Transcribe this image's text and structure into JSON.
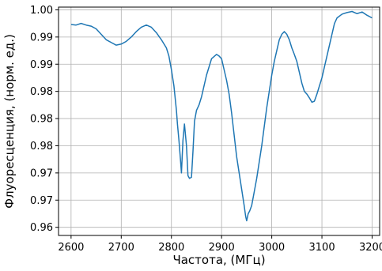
{
  "chart_data": {
    "type": "line",
    "title": "",
    "xlabel": "Частота, (МГц)",
    "ylabel": "Флуоресценция, (норм. ед.)",
    "xlim": [
      2575,
      3215
    ],
    "ylim": [
      0.9585,
      1.0005
    ],
    "grid": true,
    "legend": "none",
    "x_ticks": [
      2600,
      2700,
      2800,
      2900,
      3000,
      3100,
      3200
    ],
    "x_tick_labels": [
      "2600",
      "2700",
      "2800",
      "2900",
      "3000",
      "3100",
      "3200"
    ],
    "y_ticks": [
      0.96,
      0.965,
      0.97,
      0.975,
      0.98,
      0.985,
      0.99,
      0.995,
      1.0
    ],
    "y_tick_labels": [
      "0.96",
      "0.97",
      "0.97",
      "0.98",
      "0.98",
      "0.98",
      "0.99",
      "0.99",
      "1.00"
    ],
    "series": [
      {
        "color": "#1f77b4",
        "x": [
          2600,
          2610,
          2620,
          2630,
          2640,
          2650,
          2660,
          2670,
          2680,
          2690,
          2700,
          2710,
          2720,
          2730,
          2740,
          2750,
          2760,
          2770,
          2780,
          2790,
          2795,
          2800,
          2805,
          2810,
          2812,
          2815,
          2818,
          2820,
          2823,
          2826,
          2830,
          2833,
          2836,
          2840,
          2843,
          2846,
          2850,
          2855,
          2860,
          2870,
          2880,
          2890,
          2895,
          2900,
          2905,
          2910,
          2915,
          2920,
          2925,
          2930,
          2935,
          2940,
          2945,
          2948,
          2950,
          2953,
          2956,
          2960,
          2965,
          2970,
          2975,
          2980,
          2985,
          2990,
          2995,
          3000,
          3005,
          3010,
          3015,
          3020,
          3025,
          3030,
          3035,
          3040,
          3045,
          3050,
          3055,
          3060,
          3065,
          3070,
          3075,
          3080,
          3085,
          3090,
          3095,
          3100,
          3105,
          3110,
          3115,
          3120,
          3125,
          3130,
          3140,
          3150,
          3160,
          3170,
          3180,
          3190,
          3200
        ],
        "y": [
          0.9973,
          0.9972,
          0.9975,
          0.9972,
          0.997,
          0.9965,
          0.9955,
          0.9945,
          0.994,
          0.9935,
          0.9937,
          0.9942,
          0.995,
          0.996,
          0.9968,
          0.9972,
          0.9968,
          0.9958,
          0.9945,
          0.993,
          0.9915,
          0.989,
          0.986,
          0.9815,
          0.979,
          0.976,
          0.9725,
          0.97,
          0.976,
          0.979,
          0.975,
          0.9695,
          0.969,
          0.9692,
          0.974,
          0.9795,
          0.9815,
          0.9825,
          0.984,
          0.988,
          0.991,
          0.9918,
          0.9915,
          0.991,
          0.989,
          0.987,
          0.9845,
          0.981,
          0.977,
          0.973,
          0.97,
          0.967,
          0.964,
          0.962,
          0.9612,
          0.9625,
          0.963,
          0.964,
          0.9665,
          0.969,
          0.972,
          0.975,
          0.9785,
          0.982,
          0.985,
          0.988,
          0.9905,
          0.9925,
          0.9945,
          0.9955,
          0.996,
          0.9955,
          0.9945,
          0.993,
          0.9918,
          0.9905,
          0.9885,
          0.9865,
          0.985,
          0.9845,
          0.9838,
          0.983,
          0.9832,
          0.9845,
          0.986,
          0.9875,
          0.9895,
          0.9915,
          0.9935,
          0.9955,
          0.9975,
          0.9985,
          0.9992,
          0.9995,
          0.9997,
          0.9993,
          0.9996,
          0.999,
          0.9985
        ]
      }
    ]
  }
}
